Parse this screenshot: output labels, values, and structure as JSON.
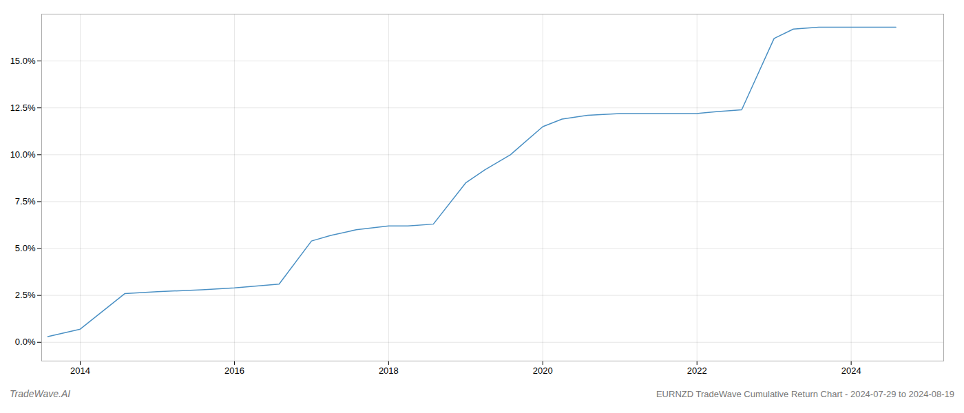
{
  "chart_data": {
    "type": "line",
    "title": "EURNZD TradeWave Cumulative Return Chart - 2024-07-29 to 2024-08-19",
    "annotations": [
      "TradeWave.AI"
    ],
    "x": [
      2013.58,
      2014.0,
      2014.58,
      2015.0,
      2015.58,
      2016.0,
      2016.58,
      2017.0,
      2017.25,
      2017.58,
      2018.0,
      2018.25,
      2018.58,
      2019.0,
      2019.25,
      2019.58,
      2020.0,
      2020.25,
      2020.58,
      2021.0,
      2021.25,
      2021.58,
      2022.0,
      2022.25,
      2022.58,
      2023.0,
      2023.25,
      2023.58,
      2024.0,
      2024.58
    ],
    "values": [
      0.003,
      0.007,
      0.026,
      0.027,
      0.028,
      0.029,
      0.031,
      0.054,
      0.057,
      0.06,
      0.062,
      0.062,
      0.063,
      0.085,
      0.092,
      0.1,
      0.115,
      0.119,
      0.121,
      0.122,
      0.122,
      0.122,
      0.122,
      0.123,
      0.124,
      0.162,
      0.167,
      0.168,
      0.168,
      0.168
    ],
    "color": "#4a90c4",
    "xlim": [
      2013.5,
      2025.2
    ],
    "ylim": [
      -0.01,
      0.175
    ],
    "xticks": [
      2014,
      2016,
      2018,
      2020,
      2022,
      2024
    ],
    "yticks": [
      {
        "value": 0.0,
        "label": "0.0%"
      },
      {
        "value": 0.025,
        "label": "2.5%"
      },
      {
        "value": 0.05,
        "label": "5.0%"
      },
      {
        "value": 0.075,
        "label": "7.5%"
      },
      {
        "value": 0.1,
        "label": "10.0%"
      },
      {
        "value": 0.125,
        "label": "12.5%"
      },
      {
        "value": 0.15,
        "label": "15.0%"
      }
    ],
    "grid": true
  }
}
